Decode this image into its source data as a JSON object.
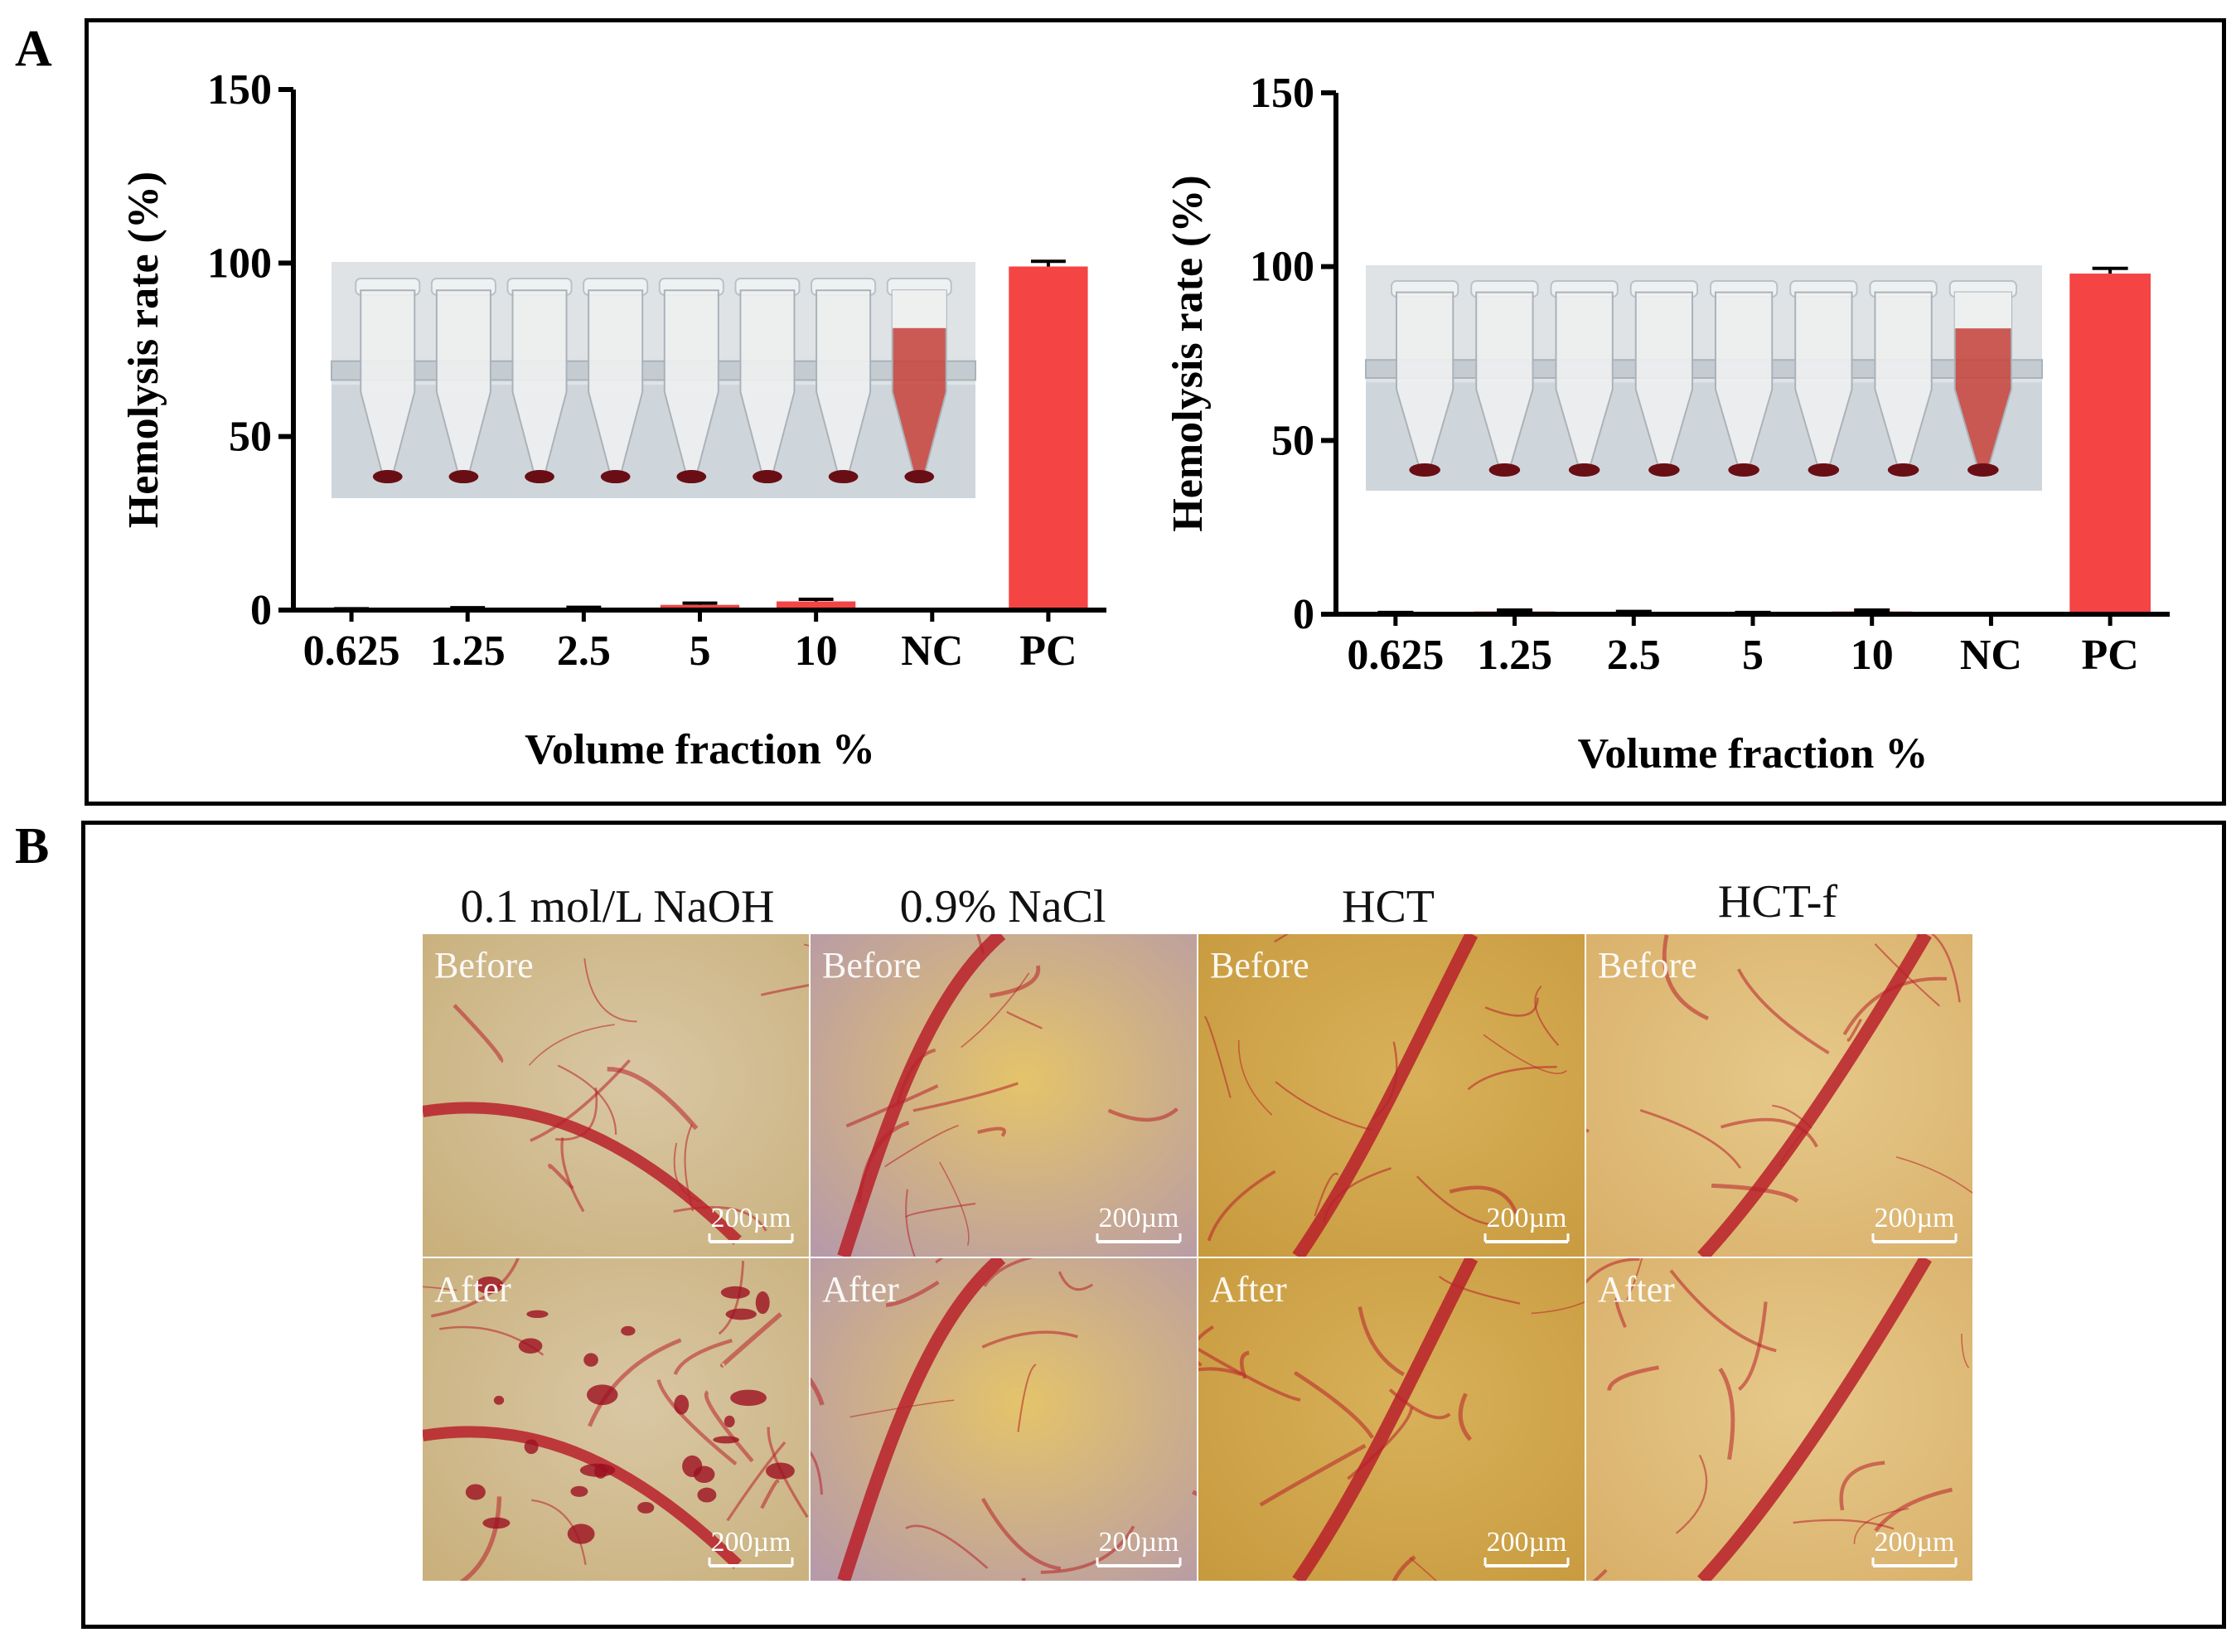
{
  "panel_a": {
    "letter": "A"
  },
  "panel_b": {
    "letter": "B",
    "columns": [
      "0.1 mol/L NaOH",
      "0.9% NaCl",
      "HCT",
      "HCT-f"
    ],
    "rows": [
      "Before",
      "After"
    ],
    "scale_bar_label": "200µm"
  },
  "colors": {
    "bar": "#f44444",
    "axis": "#000000",
    "vessel": "#b8202a",
    "membrane": "#e8c46a",
    "blood_red": "#c8423a"
  },
  "chart_data": [
    {
      "type": "bar",
      "title": "",
      "xlabel": "Volume fraction %",
      "ylabel": "Hemolysis rate (%)",
      "categories": [
        "0.625",
        "1.25",
        "2.5",
        "5",
        "10",
        "NC",
        "PC"
      ],
      "values": [
        0.2,
        0.4,
        0.5,
        1.5,
        2.5,
        0,
        99
      ],
      "errors": [
        0.2,
        0.3,
        0.3,
        0.5,
        0.6,
        0,
        1.5
      ],
      "ylim": [
        0,
        150
      ],
      "yticks": [
        0,
        50,
        100,
        150
      ],
      "inset": "photo of 8 tubes: 7 clear supernatants with red pellets, last tube fully red"
    },
    {
      "type": "bar",
      "title": "",
      "xlabel": "Volume fraction %",
      "ylabel": "Hemolysis rate (%)",
      "categories": [
        "0.625",
        "1.25",
        "2.5",
        "5",
        "10",
        "NC",
        "PC"
      ],
      "values": [
        0.3,
        0.8,
        0.5,
        0.3,
        0.8,
        0,
        98
      ],
      "errors": [
        0.2,
        0.4,
        0.3,
        0.2,
        0.4,
        0,
        1.5
      ],
      "ylim": [
        0,
        150
      ],
      "yticks": [
        0,
        50,
        100,
        150
      ],
      "inset": "photo of 8 tubes: 7 clear supernatants with red pellets, last tube fully red"
    }
  ]
}
